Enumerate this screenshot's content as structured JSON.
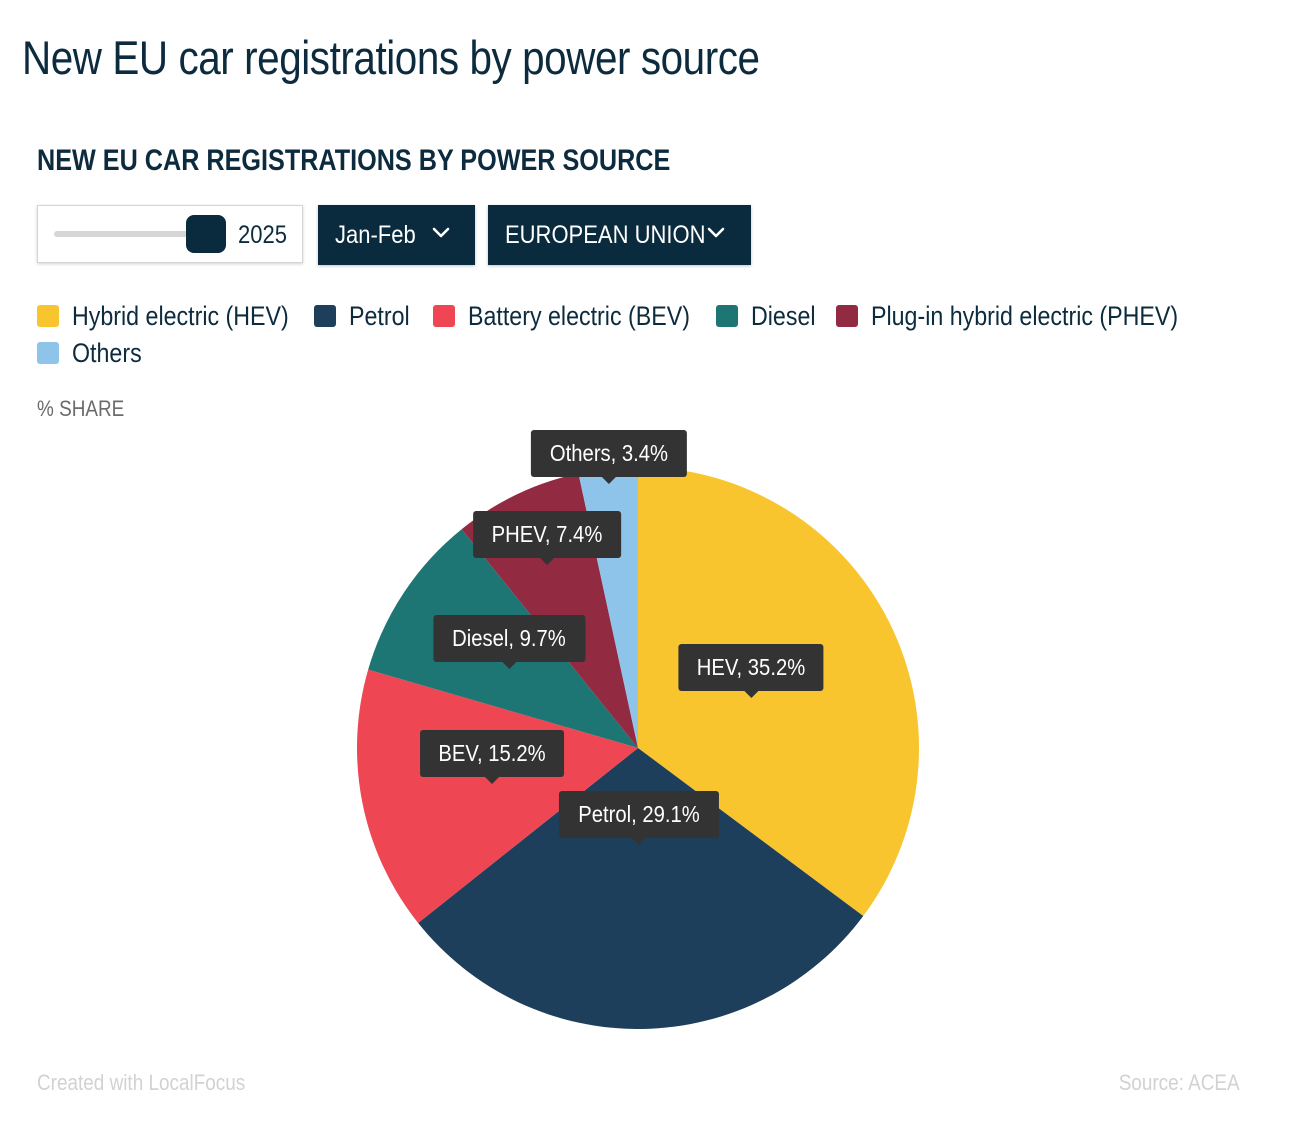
{
  "page": {
    "title": "New EU car registrations by power source"
  },
  "chart_header": {
    "title": "NEW EU CAR REGISTRATIONS BY POWER SOURCE"
  },
  "controls": {
    "year_value": "2025",
    "period_value": "Jan-Feb",
    "region_value": "EUROPEAN UNION"
  },
  "legend": [
    {
      "label": "Hybrid electric (HEV)",
      "color": "#f9c52e"
    },
    {
      "label": "Petrol",
      "color": "#1d3f5c"
    },
    {
      "label": "Battery electric (BEV)",
      "color": "#ee4653"
    },
    {
      "label": "Diesel",
      "color": "#1d7674"
    },
    {
      "label": "Plug-in hybrid electric (PHEV)",
      "color": "#922b42"
    },
    {
      "label": "Others",
      "color": "#8ec4ea"
    }
  ],
  "unit_label": "% SHARE",
  "chart_data": {
    "type": "pie",
    "slices": [
      {
        "name": "HEV",
        "value": 35.2,
        "label": "HEV, 35.2%",
        "color": "#f9c52e"
      },
      {
        "name": "Petrol",
        "value": 29.1,
        "label": "Petrol, 29.1%",
        "color": "#1d3f5c"
      },
      {
        "name": "BEV",
        "value": 15.2,
        "label": "BEV, 15.2%",
        "color": "#ee4653"
      },
      {
        "name": "Diesel",
        "value": 9.7,
        "label": "Diesel, 9.7%",
        "color": "#1d7674"
      },
      {
        "name": "PHEV",
        "value": 7.4,
        "label": "PHEV, 7.4%",
        "color": "#922b42"
      },
      {
        "name": "Others",
        "value": 3.4,
        "label": "Others, 3.4%",
        "color": "#8ec4ea"
      }
    ]
  },
  "footer": {
    "credit": "Created with LocalFocus",
    "source": "Source:  ACEA"
  }
}
